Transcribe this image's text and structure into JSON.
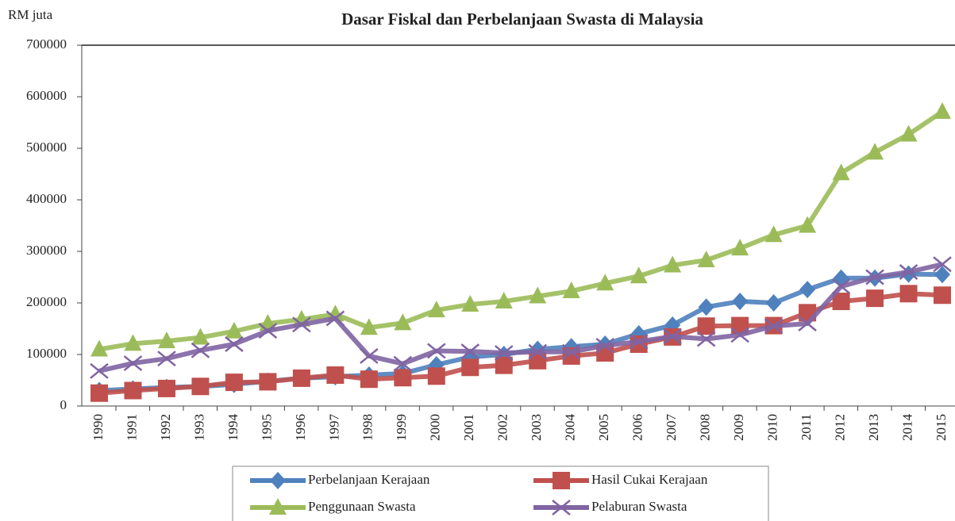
{
  "chart_data": {
    "type": "line",
    "title": "Dasar Fiskal dan Perbelanjaan Swasta di Malaysia",
    "y_label": "RM juta",
    "categories": [
      "1990",
      "1991",
      "1992",
      "1993",
      "1994",
      "1995",
      "1996",
      "1997",
      "1998",
      "1999",
      "2000",
      "2001",
      "2002",
      "2003",
      "2004",
      "2005",
      "2006",
      "2007",
      "2008",
      "2009",
      "2010",
      "2011",
      "2012",
      "2013",
      "2014",
      "2015"
    ],
    "ylim": [
      0,
      700000
    ],
    "yticks": [
      0,
      100000,
      200000,
      300000,
      400000,
      500000,
      600000,
      700000
    ],
    "series": [
      {
        "name": "Perbelanjaan Kerajaan",
        "color": "#4f81bd",
        "marker": "diamond",
        "values": [
          30000,
          33000,
          36000,
          38000,
          42000,
          48000,
          54000,
          57000,
          60000,
          63000,
          80000,
          95000,
          100000,
          110000,
          115000,
          120000,
          140000,
          157000,
          192000,
          203000,
          200000,
          226000,
          248000,
          248000,
          256000,
          255000
        ]
      },
      {
        "name": "Hasil Cukai Kerajaan",
        "color": "#c0504d",
        "marker": "square",
        "values": [
          25000,
          30000,
          34000,
          38000,
          46000,
          47000,
          54000,
          60000,
          52000,
          55000,
          58000,
          75000,
          79000,
          88000,
          97000,
          103000,
          120000,
          134000,
          155000,
          156000,
          156000,
          181000,
          203000,
          209000,
          218000,
          215000
        ]
      },
      {
        "name": "Penggunaan Swasta",
        "color": "#9bbb59",
        "marker": "triangle",
        "values": [
          110000,
          121000,
          126000,
          133000,
          145000,
          160000,
          168000,
          178000,
          152000,
          161000,
          186000,
          197000,
          203000,
          213000,
          223000,
          238000,
          252000,
          273000,
          283000,
          306000,
          332000,
          350000,
          452000,
          492000,
          527000,
          571000
        ]
      },
      {
        "name": "Pelaburan Swasta",
        "color": "#8064a2",
        "marker": "x",
        "values": [
          68000,
          83000,
          92000,
          108000,
          120000,
          146000,
          158000,
          170000,
          97000,
          82000,
          107000,
          106000,
          103000,
          105000,
          105000,
          117000,
          125000,
          135000,
          130000,
          138000,
          155000,
          160000,
          232000,
          250000,
          260000,
          275000
        ]
      }
    ]
  }
}
